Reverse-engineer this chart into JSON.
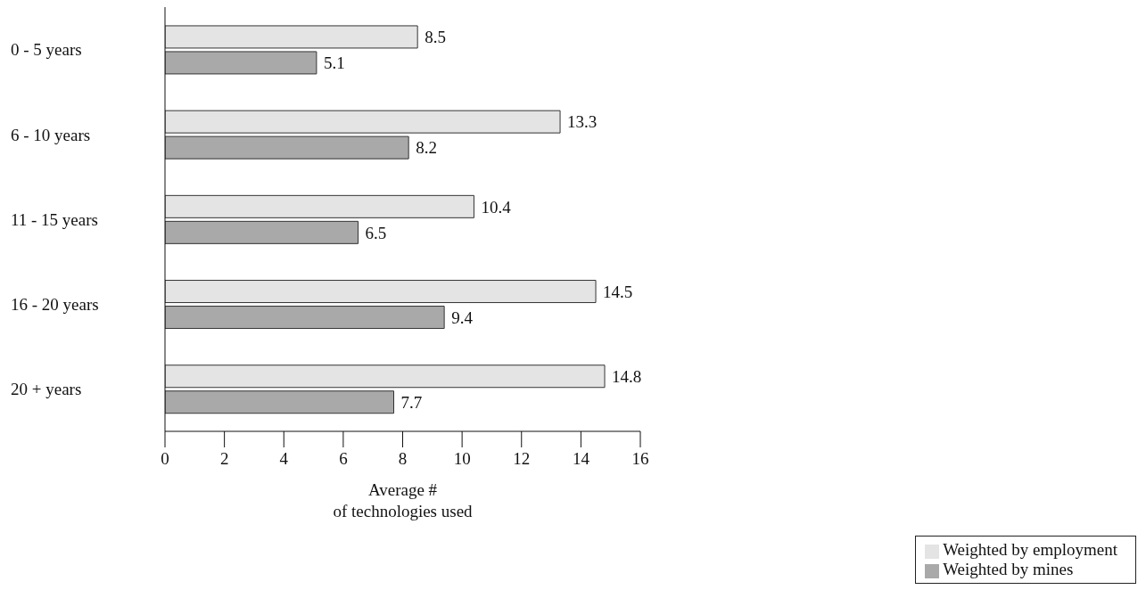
{
  "chart_data": {
    "type": "bar",
    "orientation": "horizontal",
    "xlabel": "Average #\nof technologies used",
    "categories": [
      "0 - 5 years",
      "6 - 10 years",
      "11 - 15 years",
      "16 - 20 years",
      "20 + years"
    ],
    "series": [
      {
        "name": "Weighted by employment",
        "color": "#e4e4e4",
        "values": [
          8.5,
          13.3,
          10.4,
          14.5,
          14.8
        ]
      },
      {
        "name": "Weighted by mines",
        "color": "#a9a9a9",
        "values": [
          5.1,
          8.2,
          6.5,
          9.4,
          7.7
        ]
      }
    ],
    "xlim": [
      0,
      16
    ],
    "xticks": [
      0,
      2,
      4,
      6,
      8,
      10,
      12,
      14,
      16
    ],
    "data_labels": true,
    "grid": false,
    "legend": "bottom right"
  }
}
